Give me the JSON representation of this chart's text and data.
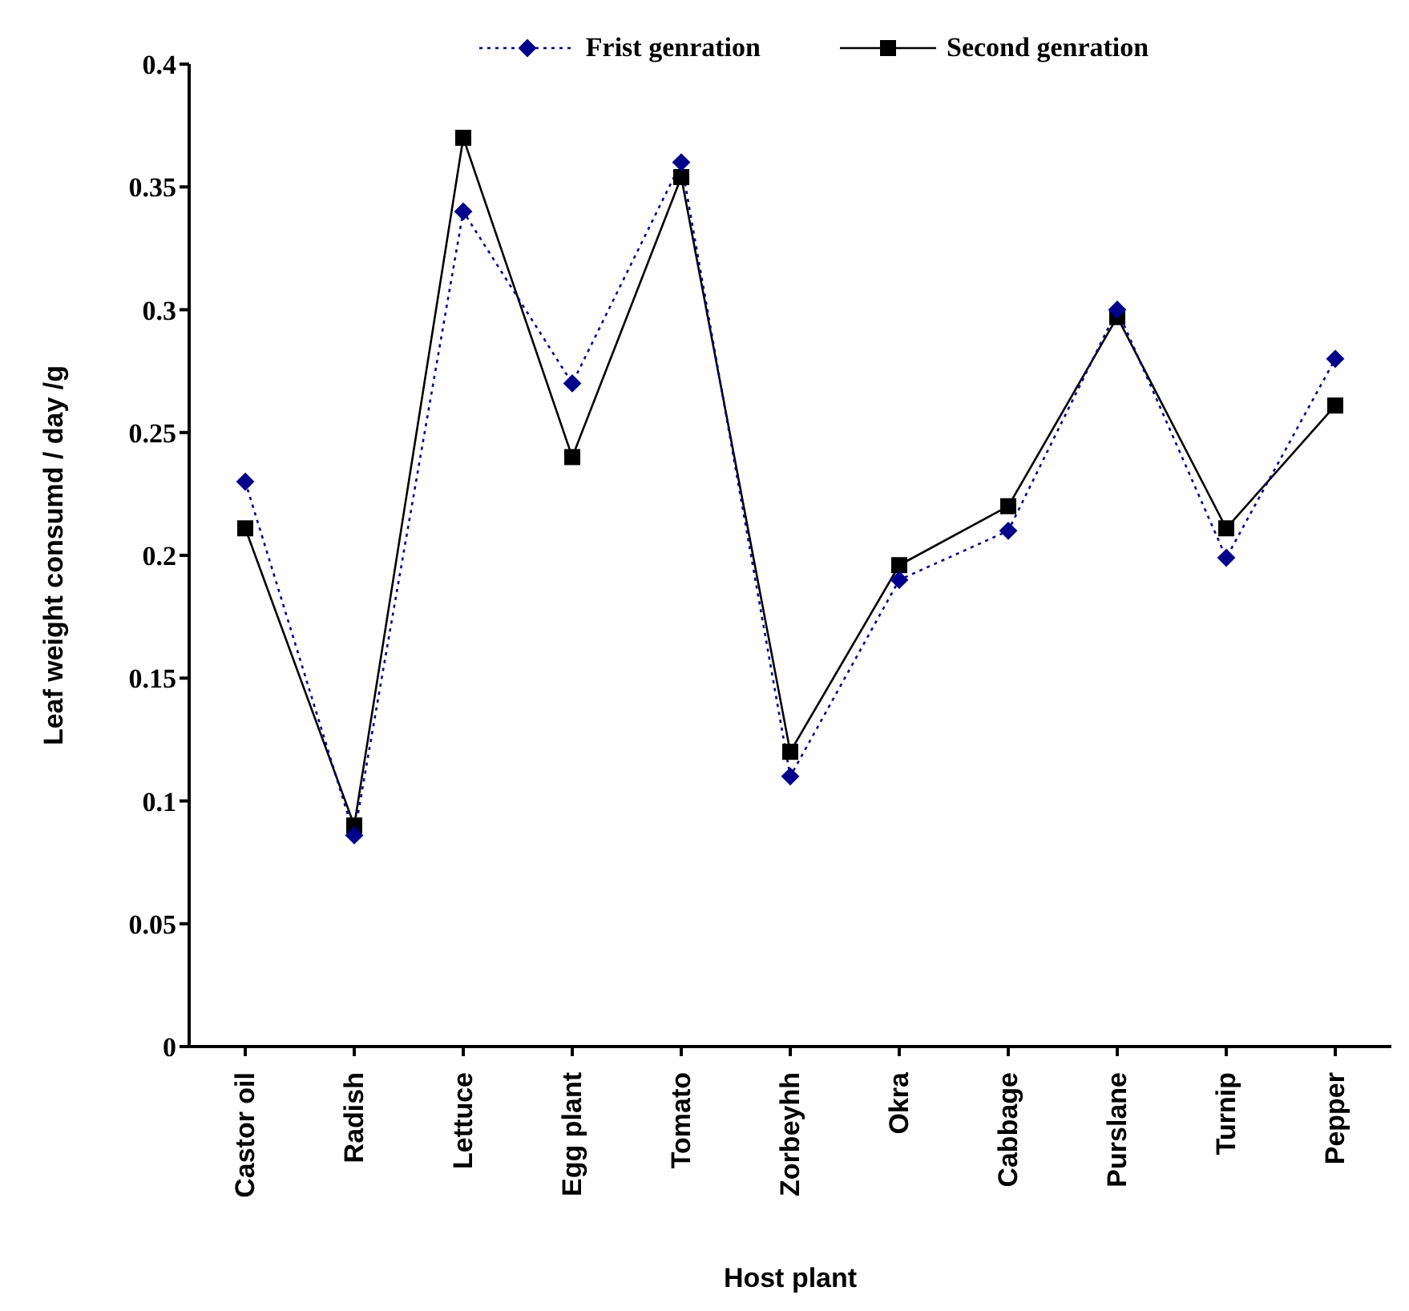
{
  "chart_data": {
    "type": "line",
    "xlabel": "Host plant",
    "ylabel": "Leaf weight consumd / day /g",
    "categories": [
      "Castor oil",
      "Radish",
      "Lettuce",
      "Egg  plant",
      "Tomato",
      "Zorbeyhh",
      "Okra",
      "Cabbage",
      "Purslane",
      "Turnip",
      "Pepper"
    ],
    "series": [
      {
        "name": "Frist genration",
        "color": "#00008b",
        "marker": "diamond",
        "line_style": "dotted",
        "values": [
          0.23,
          0.086,
          0.34,
          0.27,
          0.36,
          0.11,
          0.19,
          0.21,
          0.3,
          0.199,
          0.28
        ]
      },
      {
        "name": "Second genration",
        "color": "#000000",
        "marker": "square",
        "line_style": "solid",
        "values": [
          0.211,
          0.09,
          0.37,
          0.24,
          0.354,
          0.12,
          0.196,
          0.22,
          0.297,
          0.211,
          0.261
        ]
      }
    ],
    "ylim": [
      0,
      0.4
    ],
    "yticks": [
      0,
      0.05,
      0.1,
      0.15,
      0.2,
      0.25,
      0.3,
      0.35,
      0.4
    ],
    "grid": false,
    "legend": "top"
  }
}
